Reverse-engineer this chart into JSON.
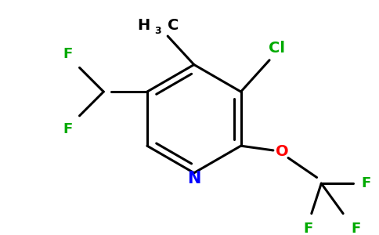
{
  "background_color": "#ffffff",
  "bond_color": "#000000",
  "bond_width": 2.2,
  "atom_colors": {
    "C": "#000000",
    "N": "#0000ff",
    "O": "#ff0000",
    "F": "#00aa00",
    "Cl": "#00aa00",
    "H": "#000000"
  },
  "figsize": [
    4.84,
    3.0
  ],
  "dpi": 100
}
